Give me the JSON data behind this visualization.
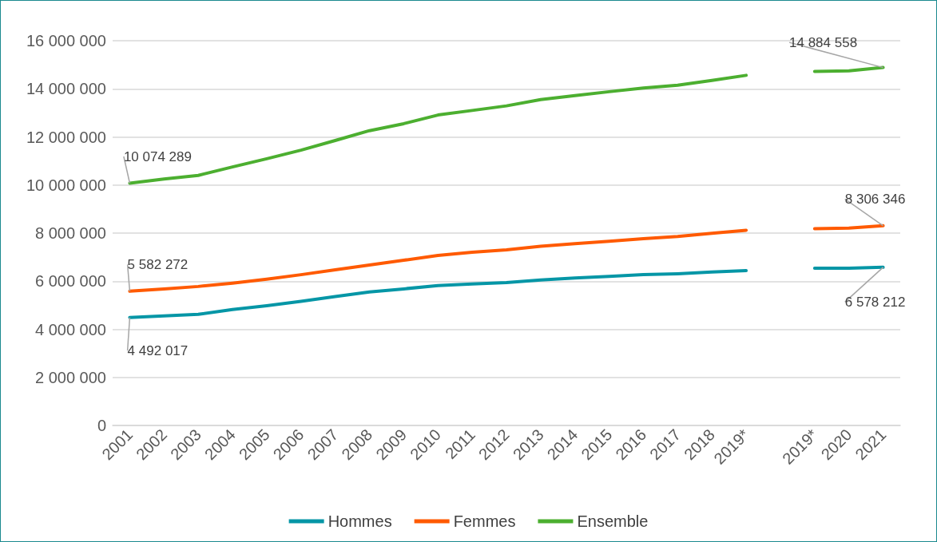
{
  "chart_data": {
    "type": "line",
    "categories": [
      "2001",
      "2002",
      "2003",
      "2004",
      "2005",
      "2006",
      "2007",
      "2008",
      "2009",
      "2010",
      "2011",
      "2012",
      "2013",
      "2014",
      "2015",
      "2016",
      "2017",
      "2018",
      "2019*",
      null,
      "2019*",
      "2020",
      "2021"
    ],
    "series": [
      {
        "name": "Hommes",
        "color": "#0596a6",
        "values": [
          4492017,
          4560000,
          4620000,
          4820000,
          4980000,
          5160000,
          5360000,
          5550000,
          5680000,
          5820000,
          5880000,
          5940000,
          6050000,
          6130000,
          6200000,
          6270000,
          6310000,
          6380000,
          6440000,
          null,
          6540000,
          6540000,
          6578212
        ],
        "value_labels": [
          "4 492 017",
          null,
          null,
          null,
          null,
          null,
          null,
          null,
          null,
          null,
          null,
          null,
          null,
          null,
          null,
          null,
          null,
          null,
          null,
          null,
          null,
          null,
          "6 578 212"
        ]
      },
      {
        "name": "Femmes",
        "color": "#ff5a00",
        "values": [
          5582272,
          5680000,
          5780000,
          5920000,
          6080000,
          6270000,
          6470000,
          6670000,
          6870000,
          7070000,
          7200000,
          7300000,
          7450000,
          7560000,
          7660000,
          7770000,
          7860000,
          7990000,
          8120000,
          null,
          8180000,
          8210000,
          8306346
        ],
        "value_labels": [
          "5 582 272",
          null,
          null,
          null,
          null,
          null,
          null,
          null,
          null,
          null,
          null,
          null,
          null,
          null,
          null,
          null,
          null,
          null,
          null,
          null,
          null,
          null,
          "8 306 346"
        ]
      },
      {
        "name": "Ensemble",
        "color": "#4caf30",
        "values": [
          10074289,
          10250000,
          10400000,
          10750000,
          11090000,
          11450000,
          11850000,
          12260000,
          12550000,
          12910000,
          13100000,
          13290000,
          13550000,
          13720000,
          13880000,
          14030000,
          14150000,
          14350000,
          14560000,
          null,
          14720000,
          14750000,
          14884558
        ],
        "value_labels": [
          "10 074 289",
          null,
          null,
          null,
          null,
          null,
          null,
          null,
          null,
          null,
          null,
          null,
          null,
          null,
          null,
          null,
          null,
          null,
          null,
          null,
          null,
          null,
          "14 884 558"
        ]
      }
    ],
    "ylim": [
      0,
      16000000
    ],
    "yticks": [
      {
        "value": 0,
        "label": "0"
      },
      {
        "value": 2000000,
        "label": "2 000 000"
      },
      {
        "value": 4000000,
        "label": "4 000 000"
      },
      {
        "value": 6000000,
        "label": "6 000 000"
      },
      {
        "value": 8000000,
        "label": "8 000 000"
      },
      {
        "value": 10000000,
        "label": "10 000 000"
      },
      {
        "value": 12000000,
        "label": "12 000 000"
      },
      {
        "value": 14000000,
        "label": "14 000 000"
      },
      {
        "value": 16000000,
        "label": "16 000 000"
      }
    ],
    "grid": "y",
    "legend": "bottom",
    "marker": "none",
    "line_style": "solid"
  }
}
